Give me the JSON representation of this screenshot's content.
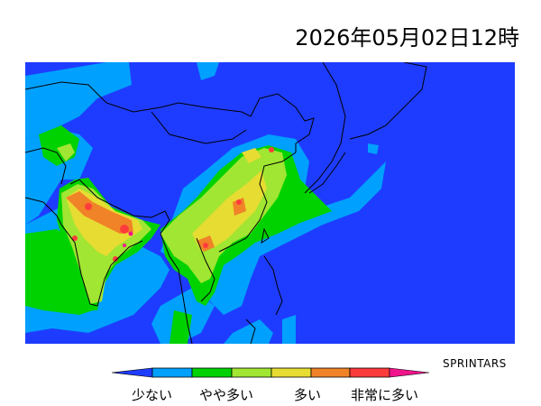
{
  "title": "2026年05月02日12時",
  "credit": "SPRINTARS",
  "legend": {
    "labels": [
      "少ない",
      "やや多い",
      "多い",
      "非常に多い"
    ],
    "colors": [
      "#1e3cff",
      "#00a0ff",
      "#00d200",
      "#a0e632",
      "#e6dc32",
      "#f08228",
      "#ff3c3c",
      "#f0148c"
    ]
  },
  "map": {
    "background": "#1e3cff"
  }
}
